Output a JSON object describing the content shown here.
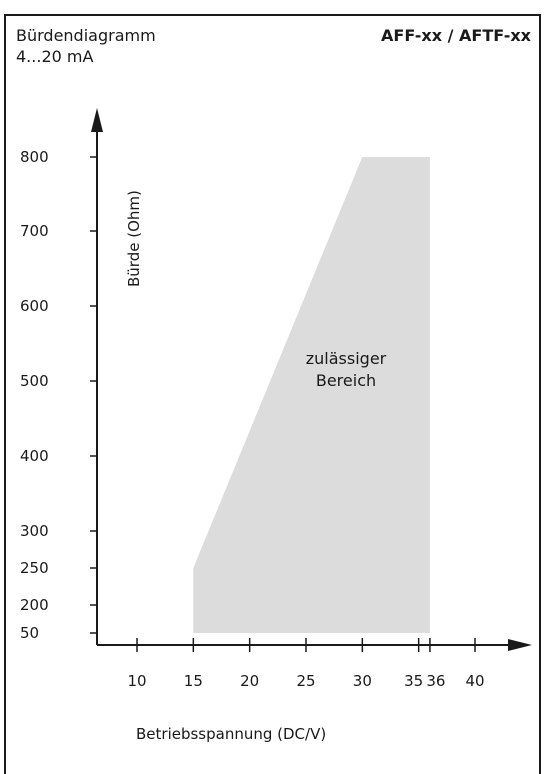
{
  "header": {
    "title_line1": "Bürdendiagramm",
    "title_line2": "4...20 mA",
    "model": "AFF-xx / AFTF-xx"
  },
  "chart_data": {
    "type": "area",
    "title": "Bürdendiagramm 4...20 mA",
    "xlabel": "Betriebsspannung (DC/V)",
    "ylabel": "Bürde (Ohm)",
    "x_ticks": [
      10,
      15,
      20,
      25,
      30,
      35,
      36,
      40
    ],
    "y_ticks": [
      50,
      200,
      250,
      300,
      400,
      500,
      600,
      700,
      800
    ],
    "series": [
      {
        "points": [
          [
            15,
            50
          ],
          [
            15,
            250
          ],
          [
            30,
            800
          ],
          [
            36,
            800
          ],
          [
            36,
            50
          ]
        ]
      }
    ],
    "annotation": [
      "zulässiger",
      "Bereich"
    ],
    "region_color": "#dcdcdc",
    "axis_color": "#1a1a1a",
    "grid": false
  }
}
